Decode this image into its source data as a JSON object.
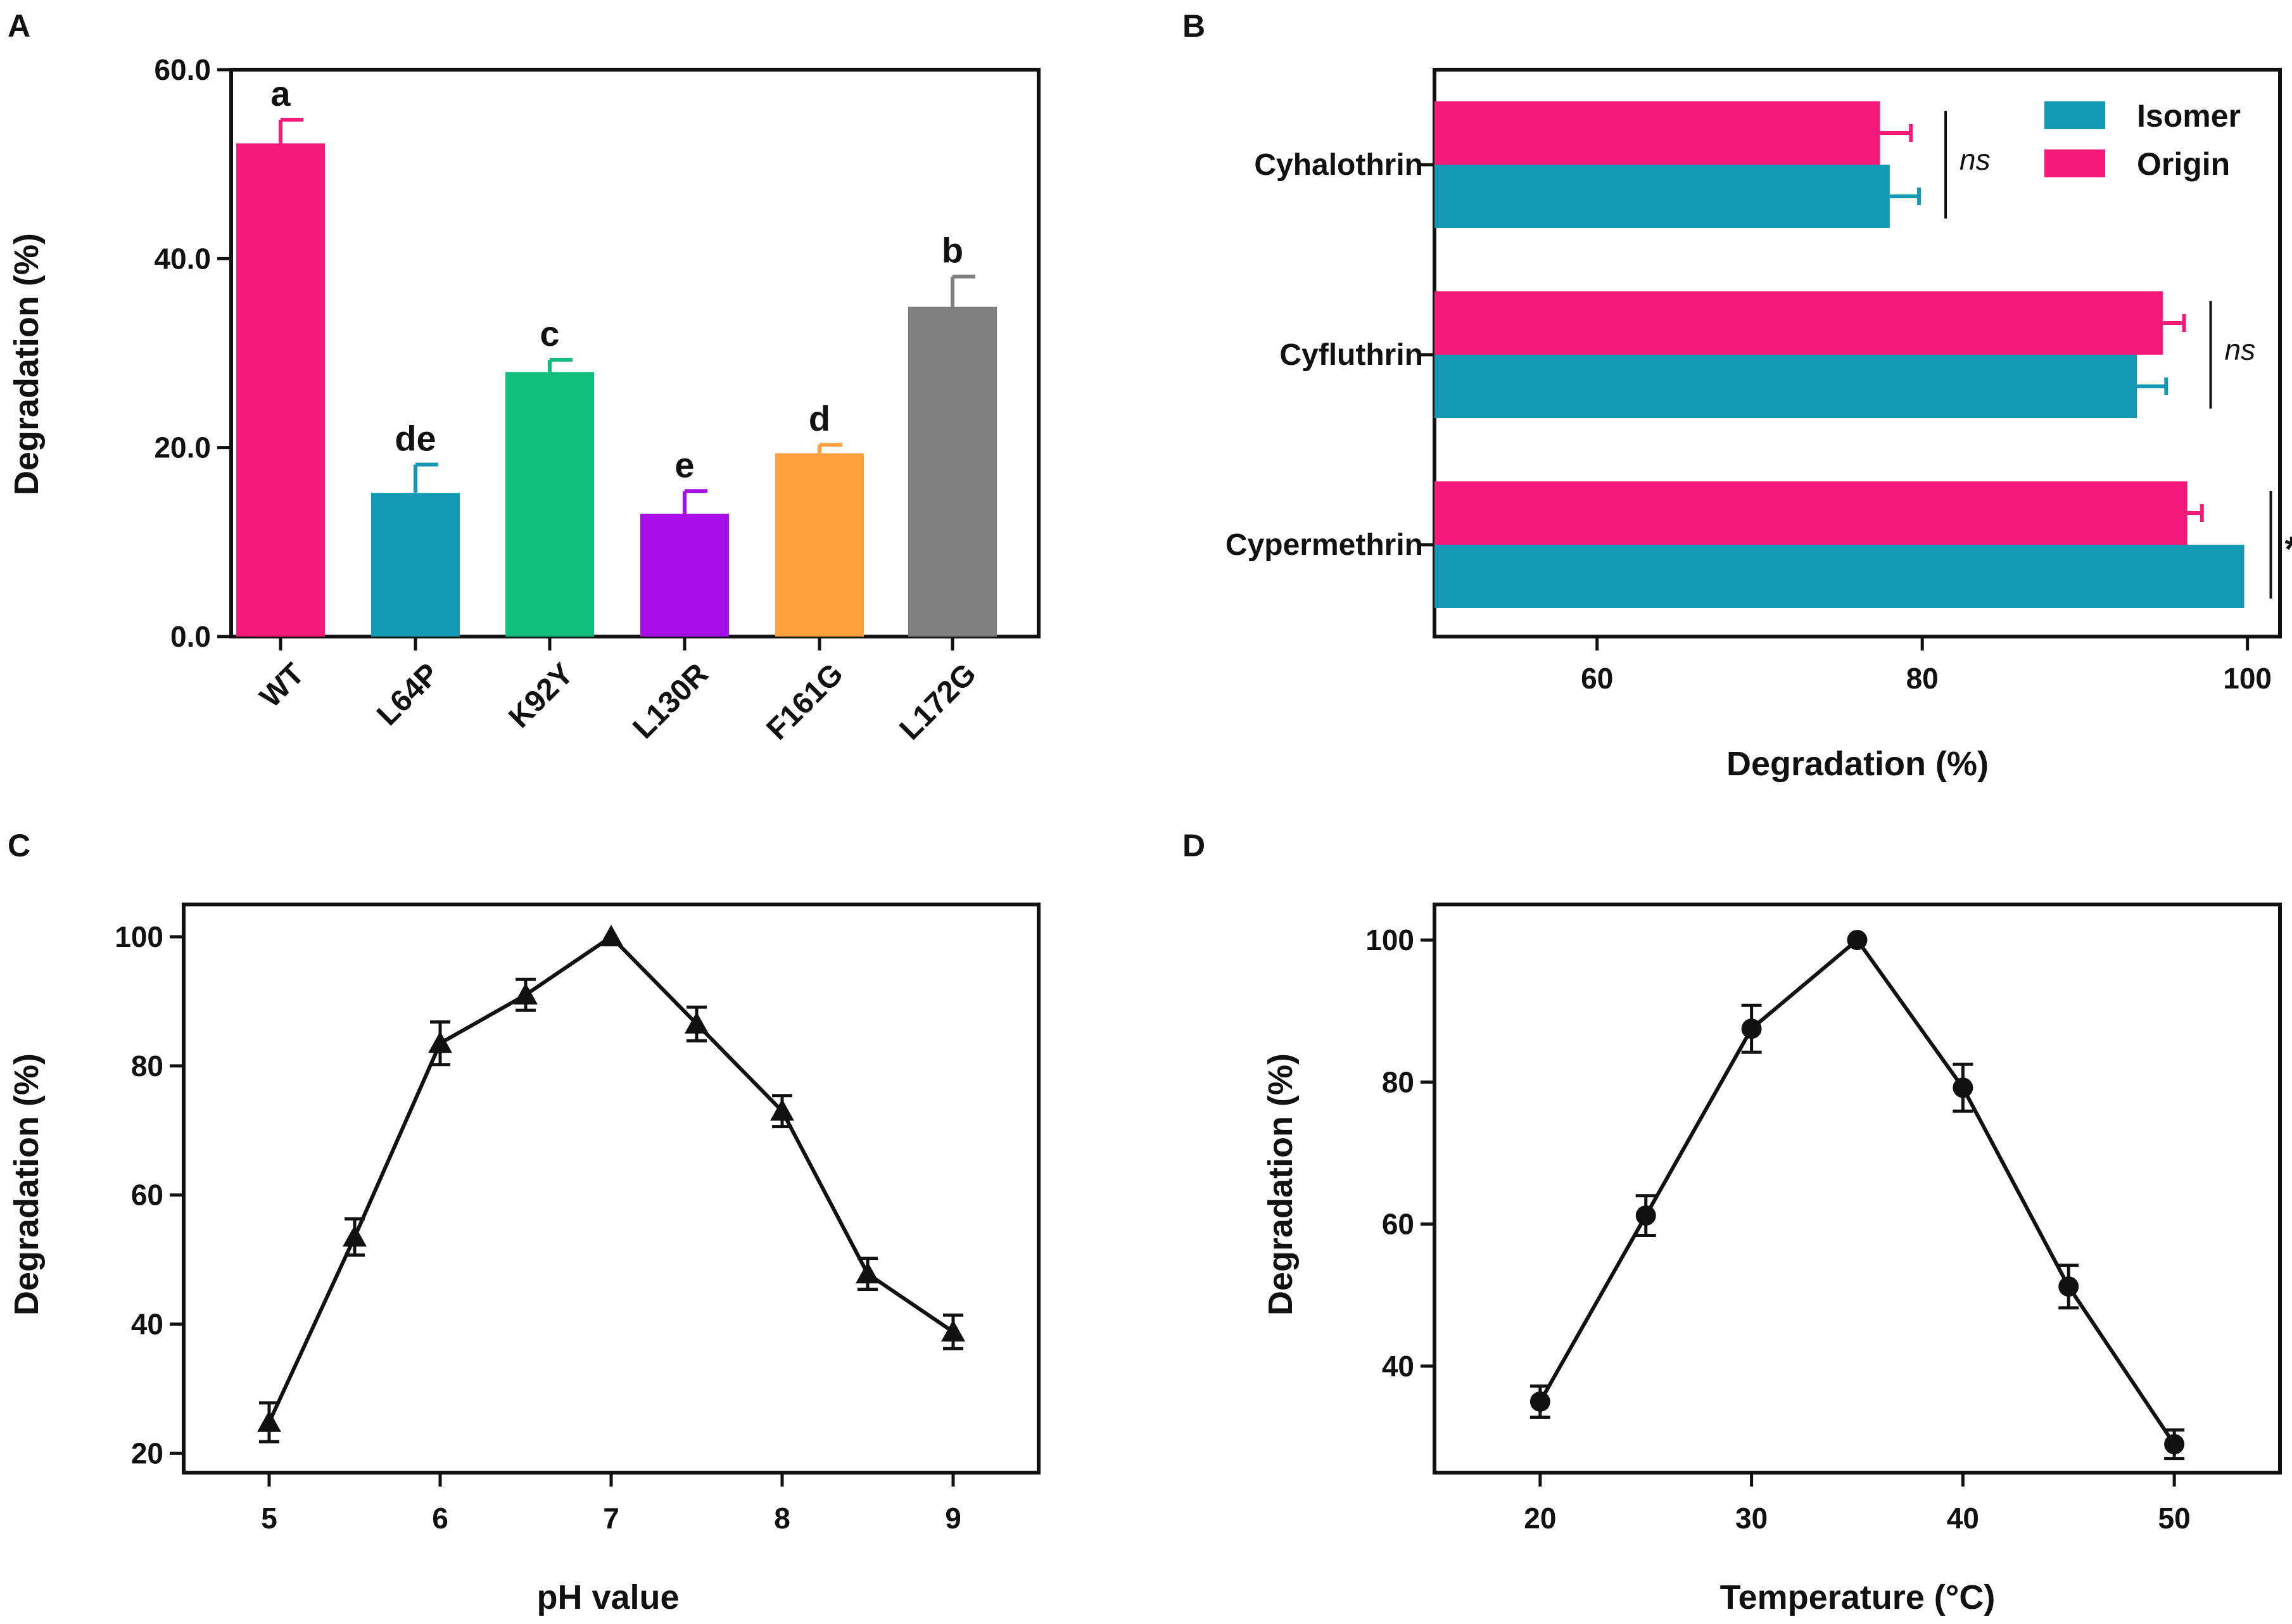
{
  "colors": {
    "axis": "#111111",
    "wt": "#f5197a",
    "l64p": "#1499b4",
    "k92y": "#10c07a",
    "l130r": "#a70ee6",
    "f161g": "#ffa040",
    "l172g": "#808080",
    "isomer": "#1499b4",
    "origin": "#f5197a",
    "line": "#111111"
  },
  "chart_data": [
    {
      "panel": "A",
      "type": "bar",
      "title": "",
      "xlabel": "",
      "ylabel": "Degradation (%)",
      "ylim": [
        0,
        60
      ],
      "yticks": [
        "0.0",
        "20.0",
        "40.0",
        "60.0"
      ],
      "categories": [
        "WT",
        "L64P",
        "K92Y",
        "L130R",
        "F161G",
        "L172G"
      ],
      "values": [
        52.2,
        15.2,
        28.0,
        13.0,
        19.4,
        34.9
      ],
      "errors": [
        2.5,
        3.0,
        1.3,
        2.4,
        0.9,
        3.2
      ],
      "significance": [
        "a",
        "de",
        "c",
        "e",
        "d",
        "b"
      ],
      "bar_colors": [
        "#f5197a",
        "#1499b4",
        "#10c07a",
        "#a70ee6",
        "#ffa040",
        "#808080"
      ]
    },
    {
      "panel": "B",
      "type": "bar",
      "orientation": "horizontal",
      "title": "",
      "xlabel": "Degradation (%)",
      "ylabel": "",
      "xlim": [
        50,
        102
      ],
      "xticks": [
        "60",
        "80",
        "100"
      ],
      "categories": [
        "Cyhalothrin",
        "Cyfluthrin",
        "Cypermethrin"
      ],
      "series": [
        {
          "name": "Isomer",
          "values": [
            78.0,
            93.2,
            99.8
          ],
          "errors": [
            1.8,
            1.8,
            0
          ]
        },
        {
          "name": "Origin",
          "values": [
            77.4,
            94.8,
            96.3
          ],
          "errors": [
            1.9,
            1.3,
            0.9
          ]
        }
      ],
      "significance": [
        "ns",
        "ns",
        "*"
      ],
      "legend_position": "top-right"
    },
    {
      "panel": "C",
      "type": "line",
      "marker": "triangle",
      "title": "",
      "xlabel": "pH value",
      "ylabel": "Degradation (%)",
      "xlim": [
        4.5,
        9.5
      ],
      "ylim": [
        17,
        105
      ],
      "xticks": [
        "5",
        "6",
        "7",
        "8",
        "9"
      ],
      "yticks": [
        "20",
        "40",
        "60",
        "80",
        "100"
      ],
      "x": [
        5,
        5.5,
        6,
        6.5,
        7,
        7.5,
        8,
        8.5,
        9
      ],
      "y": [
        24.8,
        53.5,
        83.5,
        91.0,
        100.0,
        86.5,
        73.0,
        47.8,
        38.8
      ],
      "errors": [
        3.0,
        2.8,
        3.3,
        2.4,
        0.4,
        2.6,
        2.4,
        2.4,
        2.6
      ]
    },
    {
      "panel": "D",
      "type": "line",
      "marker": "circle",
      "title": "",
      "xlabel": "Temperature (°C)",
      "ylabel": "Degradation (%)",
      "xlim": [
        15,
        55
      ],
      "ylim": [
        25,
        105
      ],
      "xticks": [
        "20",
        "30",
        "40",
        "50"
      ],
      "yticks": [
        "40",
        "60",
        "80",
        "100"
      ],
      "x": [
        20,
        25,
        30,
        35,
        40,
        45,
        50
      ],
      "y": [
        35.0,
        61.2,
        87.5,
        100.0,
        79.2,
        51.2,
        29.0
      ],
      "errors": [
        2.2,
        2.8,
        3.3,
        0.4,
        3.3,
        3.0,
        2.0
      ]
    }
  ]
}
